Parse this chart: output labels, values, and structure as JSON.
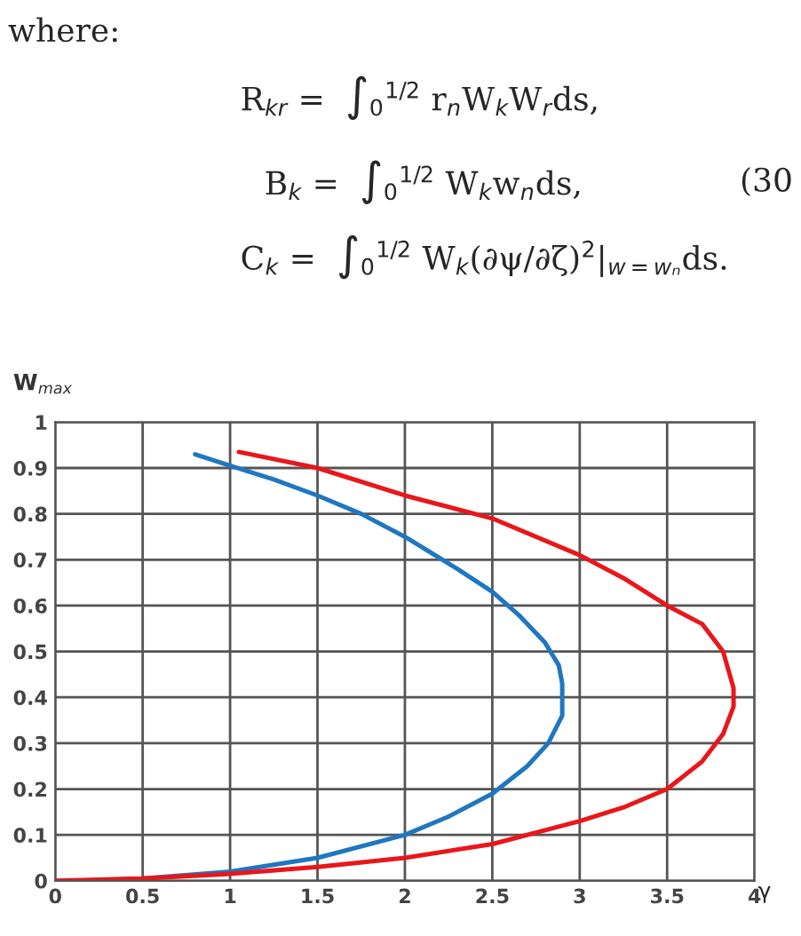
{
  "chart_data": {
    "type": "line",
    "xlabel": "γ",
    "ylabel": "W$_{max}$",
    "series": [
      {
        "color": "#1f77c0",
        "x": [
          0.17,
          0.5,
          1.0,
          1.5,
          2.0,
          2.25,
          2.5,
          2.7,
          2.82,
          2.9,
          2.9,
          2.88,
          2.8,
          2.65,
          2.5,
          2.3,
          2.0,
          1.75,
          1.5,
          1.25,
          1.0,
          0.8
        ],
        "values": [
          0.0,
          0.005,
          0.02,
          0.05,
          0.1,
          0.14,
          0.19,
          0.25,
          0.3,
          0.36,
          0.43,
          0.47,
          0.52,
          0.58,
          0.63,
          0.68,
          0.75,
          0.8,
          0.84,
          0.875,
          0.905,
          0.93
        ]
      },
      {
        "color": "#e8171b",
        "x": [
          0.0,
          0.5,
          1.0,
          1.5,
          2.0,
          2.5,
          3.0,
          3.25,
          3.5,
          3.7,
          3.82,
          3.88,
          3.88,
          3.82,
          3.7,
          3.5,
          3.25,
          3.0,
          2.5,
          2.0,
          1.5,
          1.05
        ],
        "values": [
          0.0,
          0.005,
          0.015,
          0.03,
          0.05,
          0.08,
          0.13,
          0.16,
          0.2,
          0.26,
          0.32,
          0.38,
          0.42,
          0.5,
          0.56,
          0.6,
          0.66,
          0.71,
          0.79,
          0.84,
          0.9,
          0.935
        ]
      }
    ],
    "xlim": [
      0,
      4
    ],
    "xticks": [
      0,
      0.5,
      1,
      1.5,
      2,
      2.5,
      3,
      3.5,
      4
    ],
    "ylim": [
      0,
      1
    ],
    "yticks": [
      0,
      0.1,
      0.2,
      0.3,
      0.4,
      0.5,
      0.6,
      0.7,
      0.8,
      0.9,
      1
    ],
    "grid": true,
    "marker": "none",
    "line_style": "solid",
    "annotations": [
      "where:",
      "R$_{kr}$ =  ∫$_{0}$$^{1/2}$ r$_{n}$W$_{k}$W$_{r}$ds,",
      "B$_{k}$ =  ∫$_{0}$$^{1/2}$ W$_{k}$w$_{n}$ds,",
      "(30",
      "C$_{k}$ =  ∫$_{0}$$^{1/2}$ W$_{k}$(∂ψ/∂ζ)$^{2}$|$_{w=wₙ}$ds."
    ]
  }
}
